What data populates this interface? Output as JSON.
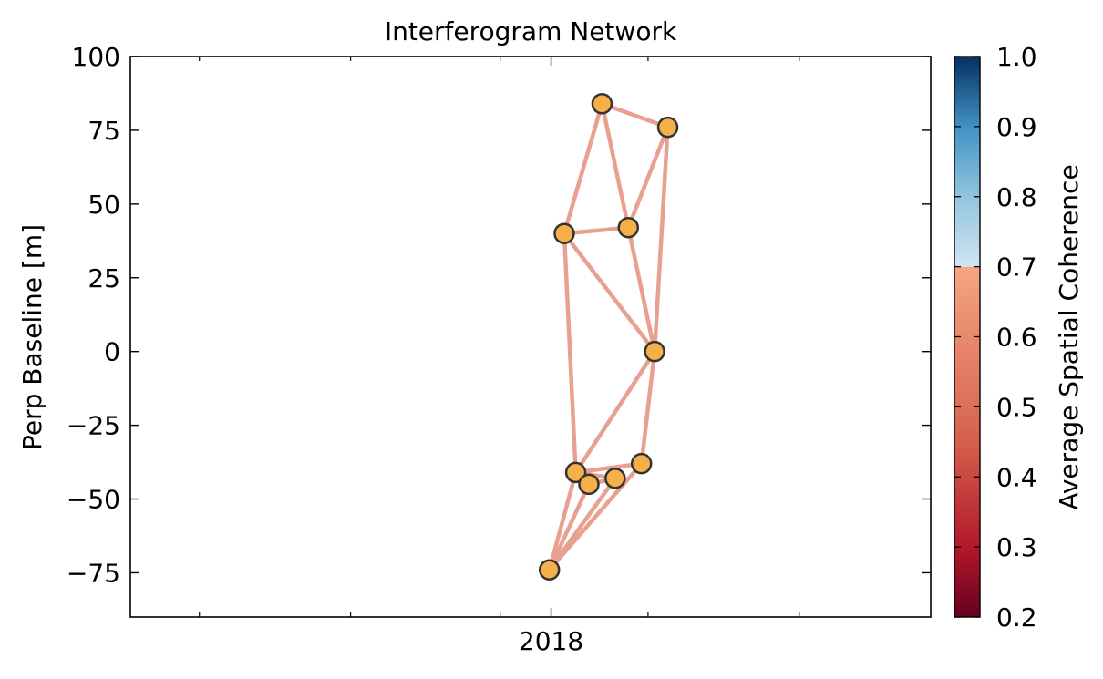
{
  "chart_data": {
    "type": "network",
    "title": "Interferogram Network",
    "xlabel": "",
    "ylabel": "Perp Baseline [m]",
    "ylim": [
      -90,
      100
    ],
    "yticks": [
      100,
      75,
      50,
      25,
      0,
      -25,
      -50,
      -75
    ],
    "yticklabels": [
      "100",
      "75",
      "50",
      "25",
      "0",
      "−25",
      "−50",
      "−75"
    ],
    "xlim": [
      "2017-04-20",
      "2018-08-20"
    ],
    "xticks": [
      {
        "date": "2018-01-01",
        "label": "2018"
      }
    ],
    "xminorticks": [
      "2017-06-01",
      "2017-09-01",
      "2017-12-01",
      "2018-03-01",
      "2018-06-01"
    ],
    "nodes": [
      {
        "date": "2017-12-31",
        "bperp": -74
      },
      {
        "date": "2018-01-16",
        "bperp": -41
      },
      {
        "date": "2018-01-24",
        "bperp": -45
      },
      {
        "date": "2018-02-09",
        "bperp": -43
      },
      {
        "date": "2018-02-25",
        "bperp": -38
      },
      {
        "date": "2018-01-09",
        "bperp": 40
      },
      {
        "date": "2018-02-01",
        "bperp": 84
      },
      {
        "date": "2018-02-17",
        "bperp": 42
      },
      {
        "date": "2018-03-05",
        "bperp": 0
      },
      {
        "date": "2018-03-13",
        "bperp": 76
      }
    ],
    "edges": [
      {
        "from": 0,
        "to": 1,
        "coherence": 0.64
      },
      {
        "from": 0,
        "to": 2,
        "coherence": 0.64
      },
      {
        "from": 0,
        "to": 3,
        "coherence": 0.64
      },
      {
        "from": 0,
        "to": 4,
        "coherence": 0.64
      },
      {
        "from": 1,
        "to": 2,
        "coherence": 0.64
      },
      {
        "from": 1,
        "to": 3,
        "coherence": 0.64
      },
      {
        "from": 1,
        "to": 4,
        "coherence": 0.64
      },
      {
        "from": 2,
        "to": 3,
        "coherence": 0.64
      },
      {
        "from": 1,
        "to": 5,
        "coherence": 0.64
      },
      {
        "from": 1,
        "to": 8,
        "coherence": 0.64
      },
      {
        "from": 4,
        "to": 8,
        "coherence": 0.64
      },
      {
        "from": 5,
        "to": 6,
        "coherence": 0.64
      },
      {
        "from": 5,
        "to": 7,
        "coherence": 0.64
      },
      {
        "from": 5,
        "to": 8,
        "coherence": 0.64
      },
      {
        "from": 6,
        "to": 7,
        "coherence": 0.64
      },
      {
        "from": 6,
        "to": 9,
        "coherence": 0.64
      },
      {
        "from": 7,
        "to": 9,
        "coherence": 0.64
      },
      {
        "from": 7,
        "to": 8,
        "coherence": 0.64
      },
      {
        "from": 8,
        "to": 9,
        "coherence": 0.64
      }
    ],
    "node_color": "#f6b04a",
    "node_edge_color": "#333333",
    "edge_color": "#e8a090",
    "colorbar": {
      "label": "Average Spatial Coherence",
      "vmin": 0.2,
      "vmax": 1.0,
      "ticks": [
        1.0,
        0.9,
        0.8,
        0.7,
        0.6,
        0.5,
        0.4,
        0.3,
        0.2
      ],
      "ticklabels": [
        "1.0",
        "0.9",
        "0.8",
        "0.7",
        "0.6",
        "0.5",
        "0.4",
        "0.3",
        "0.2"
      ],
      "colormap": "RdBu",
      "split": 0.7
    },
    "grid": false,
    "legend": null
  }
}
